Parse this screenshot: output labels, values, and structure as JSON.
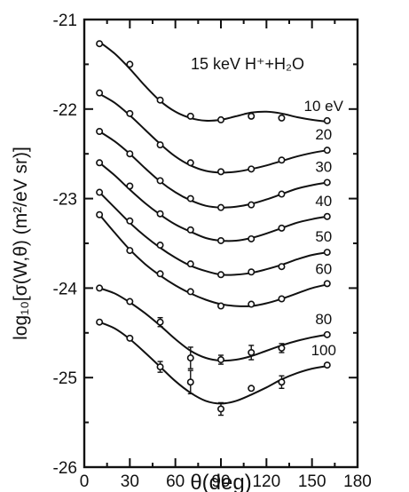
{
  "chart_data": {
    "type": "line",
    "annotation": "15 keV  H⁺+H₂O",
    "xlabel": "θ(deg)",
    "ylabel": "log₁₀[σ(W,θ) (m²/eV sr)]",
    "xlim": [
      0,
      180
    ],
    "ylim": [
      -26,
      -21
    ],
    "x_ticks": [
      0,
      30,
      60,
      90,
      120,
      150,
      180
    ],
    "y_ticks": [
      -21,
      -22,
      -23,
      -24,
      -25,
      -26
    ],
    "grid": false,
    "series": [
      {
        "name": "10 eV",
        "points": {
          "x": [
            10,
            30,
            50,
            70,
            90,
            110,
            130,
            160
          ],
          "y": [
            -21.27,
            -21.5,
            -21.9,
            -22.08,
            -22.12,
            -22.08,
            -22.1,
            -22.13
          ]
        },
        "curve": {
          "x": [
            10,
            20,
            30,
            40,
            50,
            60,
            70,
            80,
            90,
            100,
            110,
            120,
            130,
            140,
            150,
            160
          ],
          "y": [
            -21.25,
            -21.38,
            -21.55,
            -21.74,
            -21.91,
            -22.03,
            -22.1,
            -22.13,
            -22.12,
            -22.08,
            -22.04,
            -22.03,
            -22.05,
            -22.09,
            -22.12,
            -22.14
          ]
        }
      },
      {
        "name": "20",
        "points": {
          "x": [
            10,
            30,
            50,
            70,
            90,
            110,
            130,
            160
          ],
          "y": [
            -21.82,
            -22.05,
            -22.4,
            -22.6,
            -22.7,
            -22.67,
            -22.57,
            -22.46
          ]
        },
        "curve": {
          "x": [
            10,
            20,
            30,
            40,
            50,
            60,
            70,
            80,
            90,
            100,
            110,
            120,
            130,
            140,
            150,
            160
          ],
          "y": [
            -21.83,
            -21.93,
            -22.07,
            -22.23,
            -22.39,
            -22.53,
            -22.63,
            -22.69,
            -22.71,
            -22.7,
            -22.67,
            -22.63,
            -22.58,
            -22.53,
            -22.49,
            -22.46
          ]
        }
      },
      {
        "name": "30",
        "points": {
          "x": [
            10,
            30,
            50,
            70,
            90,
            110,
            130,
            160
          ],
          "y": [
            -22.25,
            -22.5,
            -22.8,
            -23.0,
            -23.1,
            -23.07,
            -22.95,
            -22.82
          ]
        },
        "curve": {
          "x": [
            10,
            20,
            30,
            40,
            50,
            60,
            70,
            80,
            90,
            100,
            110,
            120,
            130,
            140,
            150,
            160
          ],
          "y": [
            -22.25,
            -22.36,
            -22.5,
            -22.66,
            -22.81,
            -22.93,
            -23.02,
            -23.08,
            -23.1,
            -23.09,
            -23.06,
            -23.01,
            -22.95,
            -22.89,
            -22.85,
            -22.82
          ]
        }
      },
      {
        "name": "40",
        "points": {
          "x": [
            10,
            30,
            50,
            70,
            90,
            110,
            130,
            160
          ],
          "y": [
            -22.6,
            -22.86,
            -23.17,
            -23.35,
            -23.47,
            -23.45,
            -23.33,
            -23.2
          ]
        },
        "curve": {
          "x": [
            10,
            20,
            30,
            40,
            50,
            60,
            70,
            80,
            90,
            100,
            110,
            120,
            130,
            140,
            150,
            160
          ],
          "y": [
            -22.6,
            -22.74,
            -22.9,
            -23.05,
            -23.18,
            -23.29,
            -23.37,
            -23.44,
            -23.47,
            -23.47,
            -23.44,
            -23.39,
            -23.33,
            -23.27,
            -23.23,
            -23.2
          ]
        }
      },
      {
        "name": "50",
        "points": {
          "x": [
            10,
            30,
            50,
            70,
            90,
            110,
            130,
            160
          ],
          "y": [
            -22.93,
            -23.25,
            -23.52,
            -23.73,
            -23.85,
            -23.82,
            -23.76,
            -23.6
          ]
        },
        "curve": {
          "x": [
            10,
            20,
            30,
            40,
            50,
            60,
            70,
            80,
            90,
            100,
            110,
            120,
            130,
            140,
            150,
            160
          ],
          "y": [
            -22.93,
            -23.1,
            -23.27,
            -23.42,
            -23.55,
            -23.66,
            -23.75,
            -23.81,
            -23.85,
            -23.85,
            -23.83,
            -23.79,
            -23.74,
            -23.68,
            -23.63,
            -23.6
          ]
        }
      },
      {
        "name": "60",
        "points": {
          "x": [
            10,
            30,
            50,
            70,
            90,
            110,
            130,
            160
          ],
          "y": [
            -23.18,
            -23.58,
            -23.84,
            -24.04,
            -24.2,
            -24.18,
            -24.12,
            -23.95
          ]
        },
        "curve": {
          "x": [
            10,
            20,
            30,
            40,
            50,
            60,
            70,
            80,
            90,
            100,
            110,
            120,
            130,
            140,
            150,
            160
          ],
          "y": [
            -23.18,
            -23.38,
            -23.57,
            -23.73,
            -23.86,
            -23.97,
            -24.06,
            -24.13,
            -24.18,
            -24.2,
            -24.2,
            -24.17,
            -24.12,
            -24.06,
            -24.0,
            -23.96
          ]
        }
      },
      {
        "name": "80",
        "points": {
          "x": [
            10,
            30,
            50,
            70,
            90,
            110,
            130,
            160
          ],
          "y": [
            -24.0,
            -24.15,
            -24.38,
            -24.78,
            -24.8,
            -24.72,
            -24.67,
            -24.52
          ],
          "err": [
            0,
            0,
            0.05,
            0.12,
            0.05,
            0.08,
            0.05,
            0
          ]
        },
        "curve": {
          "x": [
            10,
            20,
            30,
            40,
            50,
            60,
            70,
            80,
            90,
            100,
            110,
            120,
            130,
            140,
            150,
            160
          ],
          "y": [
            -24.0,
            -24.06,
            -24.16,
            -24.28,
            -24.42,
            -24.57,
            -24.7,
            -24.78,
            -24.81,
            -24.8,
            -24.76,
            -24.7,
            -24.64,
            -24.59,
            -24.55,
            -24.52
          ]
        }
      },
      {
        "name": "100",
        "points": {
          "x": [
            10,
            30,
            50,
            70,
            90,
            110,
            130,
            160
          ],
          "y": [
            -24.38,
            -24.56,
            -24.88,
            -25.05,
            -25.35,
            -25.12,
            -25.05,
            -24.86
          ],
          "err": [
            0,
            0,
            0.06,
            0.13,
            0.07,
            0,
            0.07,
            0
          ]
        },
        "curve": {
          "x": [
            10,
            20,
            30,
            40,
            50,
            60,
            70,
            80,
            90,
            100,
            110,
            120,
            130,
            140,
            150,
            160
          ],
          "y": [
            -24.38,
            -24.45,
            -24.57,
            -24.72,
            -24.88,
            -25.04,
            -25.17,
            -25.26,
            -25.29,
            -25.26,
            -25.19,
            -25.11,
            -25.02,
            -24.95,
            -24.9,
            -24.87
          ]
        }
      }
    ]
  }
}
